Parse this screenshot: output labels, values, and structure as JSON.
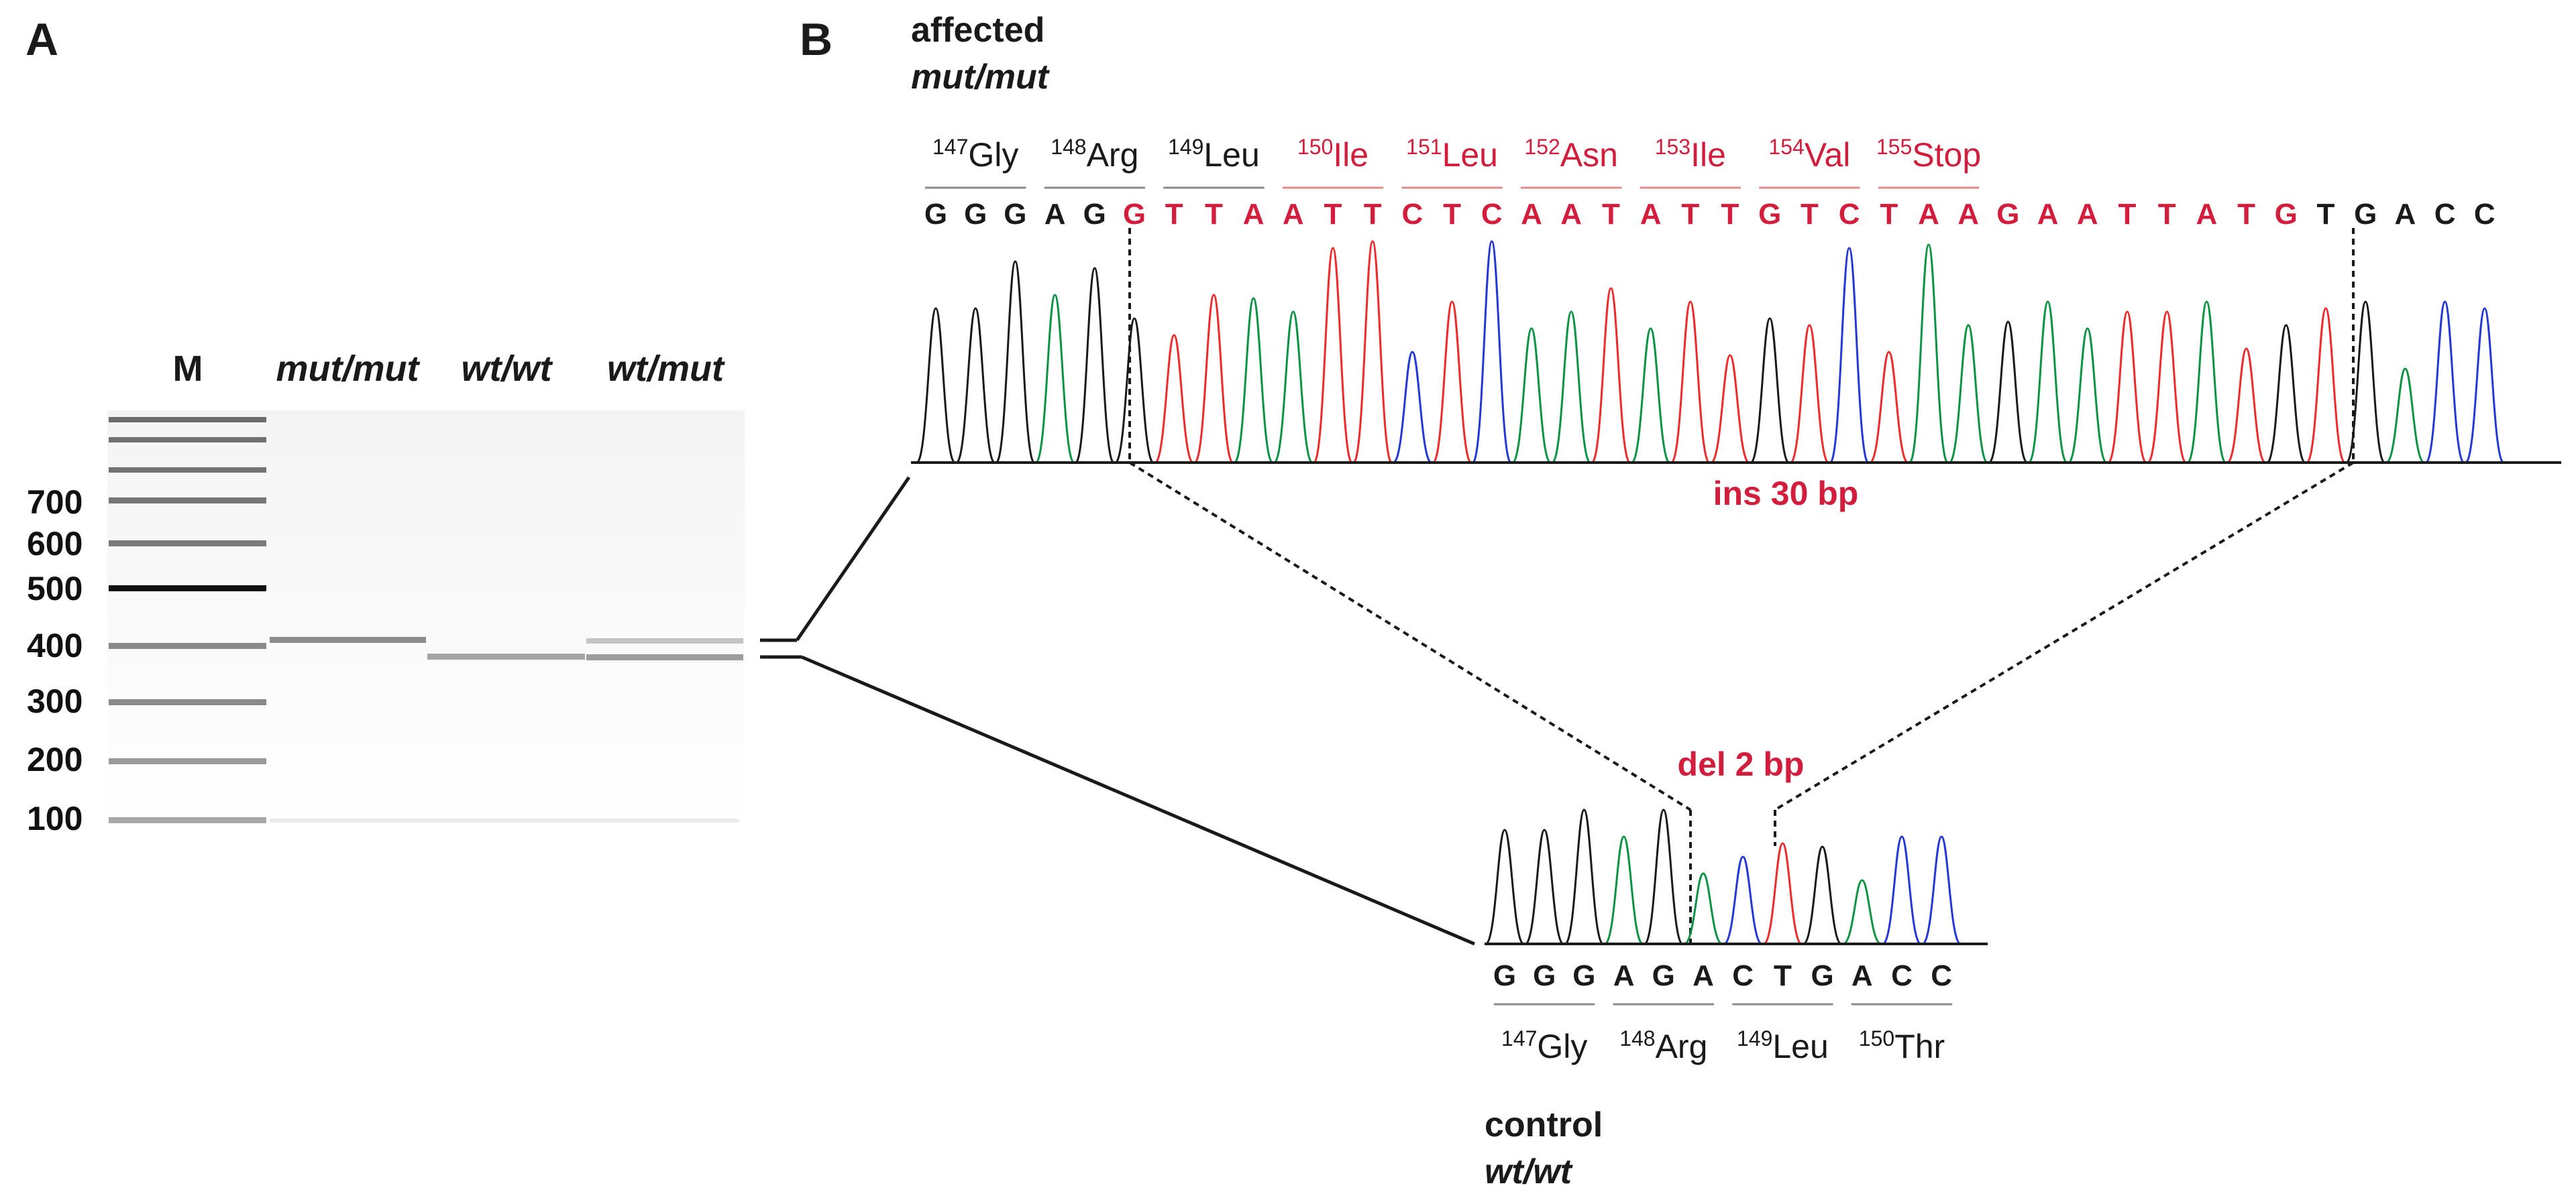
{
  "panel_a": {
    "label": "A",
    "lanes": [
      "M",
      "mut/mut",
      "wt/wt",
      "wt/mut"
    ],
    "ladder_labels": [
      "700",
      "600",
      "500",
      "400",
      "300",
      "200",
      "100"
    ]
  },
  "panel_b": {
    "label": "B",
    "affected": {
      "title": "affected",
      "genotype": "mut/mut",
      "sequence": [
        "G",
        "G",
        "G",
        "A",
        "G",
        "G",
        "T",
        "T",
        "A",
        "A",
        "T",
        "T",
        "C",
        "T",
        "C",
        "A",
        "A",
        "T",
        "A",
        "T",
        "T",
        "G",
        "T",
        "C",
        "T",
        "A",
        "A",
        "G",
        "A",
        "A",
        "T",
        "T",
        "A",
        "T",
        "G",
        "T",
        "G",
        "A",
        "C",
        "C"
      ],
      "codons": [
        {
          "num": "147",
          "aa": "Gly"
        },
        {
          "num": "148",
          "aa": "Arg"
        },
        {
          "num": "149",
          "aa": "Leu"
        },
        {
          "num": "150",
          "aa": "Ile"
        },
        {
          "num": "151",
          "aa": "Leu"
        },
        {
          "num": "152",
          "aa": "Asn"
        },
        {
          "num": "153",
          "aa": "Ile"
        },
        {
          "num": "154",
          "aa": "Val"
        },
        {
          "num": "155",
          "aa": "Stop"
        }
      ],
      "annotation": "ins 30 bp"
    },
    "control": {
      "title": "control",
      "genotype": "wt/wt",
      "sequence": [
        "G",
        "G",
        "G",
        "A",
        "G",
        "A",
        "C",
        "T",
        "G",
        "A",
        "C",
        "C"
      ],
      "codons": [
        {
          "num": "147",
          "aa": "Gly"
        },
        {
          "num": "148",
          "aa": "Arg"
        },
        {
          "num": "149",
          "aa": "Leu"
        },
        {
          "num": "150",
          "aa": "Thr"
        }
      ],
      "annotation": "del 2 bp"
    }
  },
  "colors": {
    "A": "#0b9444",
    "C": "#2438d8",
    "G": "#1a1a1a",
    "T": "#ee2a2a",
    "mutation": "#d21e3c"
  }
}
